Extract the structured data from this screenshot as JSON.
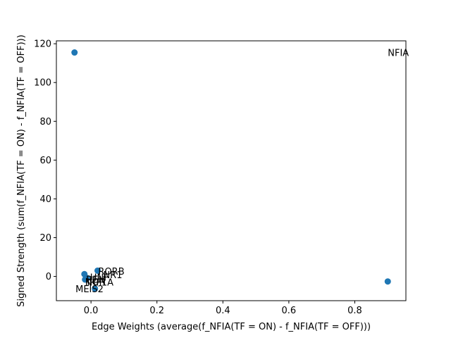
{
  "chart_data": {
    "type": "scatter",
    "title": "",
    "xlabel": "Edge Weights (average(f_NFIA(TF = ON) - f_NFIA(TF = OFF)))",
    "ylabel": "Signed Strength (sum(f_NFIA(TF = ON) - f_NFIA(TF = OFF)))",
    "xlim": [
      -0.105,
      0.955
    ],
    "ylim": [
      -12.5,
      121.5
    ],
    "xticks": [
      0.0,
      0.2,
      0.4,
      0.6,
      0.8
    ],
    "xtick_labels": [
      "0.0",
      "0.2",
      "0.4",
      "0.6",
      "0.8"
    ],
    "yticks": [
      0,
      20,
      40,
      60,
      80,
      100,
      120
    ],
    "ytick_labels": [
      "0",
      "20",
      "40",
      "60",
      "80",
      "100",
      "120"
    ],
    "grid": false,
    "marker_color": "#1f77b4",
    "points": [
      {
        "x": -0.05,
        "y": 115.5,
        "label": ""
      },
      {
        "x": 0.9,
        "y": -2.6,
        "label": ""
      },
      {
        "x": -0.02,
        "y": 1.2,
        "label": ""
      },
      {
        "x": 0.02,
        "y": 3.0,
        "label": ""
      },
      {
        "x": 0.012,
        "y": -6.3,
        "label": ""
      },
      {
        "x": -0.018,
        "y": -1.6,
        "label": ""
      },
      {
        "x": -0.012,
        "y": -0.8,
        "label": ""
      }
    ],
    "annotations": [
      {
        "text": "NFIA",
        "x": 0.9,
        "y": 115.5
      },
      {
        "text": "RORB",
        "x": 0.022,
        "y": 2.8
      },
      {
        "text": "NR1",
        "x": 0.037,
        "y": 1.0
      },
      {
        "text": "HNF",
        "x": -0.003,
        "y": -0.4
      },
      {
        "text": "REN",
        "x": -0.015,
        "y": -1.4
      },
      {
        "text": "NOR",
        "x": -0.018,
        "y": -2.7
      },
      {
        "text": "IRF1A",
        "x": -0.012,
        "y": -2.9
      },
      {
        "text": "MEIS2",
        "x": -0.047,
        "y": -6.3
      }
    ]
  }
}
